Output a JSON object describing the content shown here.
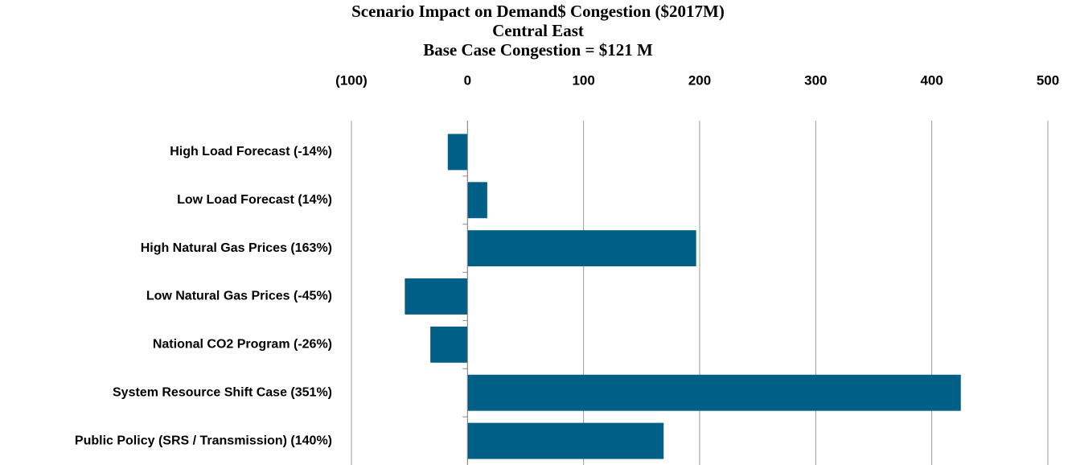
{
  "chart_data": {
    "type": "barh",
    "title": "Scenario Impact on Demand$ Congestion ($2017M)",
    "subtitle": "Central East",
    "annotation": "Base Case Congestion = $121 M",
    "categories": [
      "High Load Forecast (-14%)",
      "Low Load Forecast (14%)",
      "High Natural Gas Prices (163%)",
      "Low Natural Gas Prices (-45%)",
      "National CO2 Program (-26%)",
      "System Resource Shift Case (351%)",
      "Public Policy (SRS / Transmission) (140%)"
    ],
    "values": [
      -17,
      17,
      197,
      -54,
      -32,
      425,
      169
    ],
    "color": "#005f87",
    "xlim": [
      -100,
      500
    ],
    "xticks": [
      {
        "value": -100,
        "label": "(100)"
      },
      0,
      100,
      200,
      300,
      400,
      500
    ],
    "negative_tick_color": "#ff0000",
    "grid": true
  }
}
